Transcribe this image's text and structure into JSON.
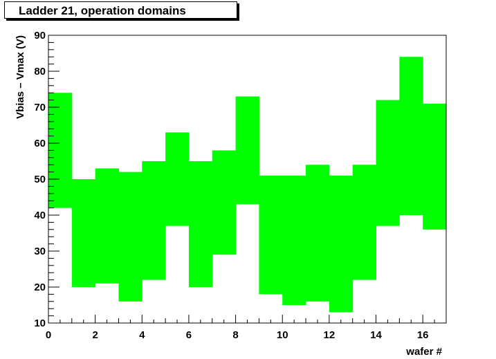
{
  "chart_data": {
    "type": "area",
    "title": "Ladder 21, operation domains",
    "xlabel": "wafer #",
    "ylabel": "Vbias – Vmax (V)",
    "xlim": [
      0,
      17
    ],
    "ylim": [
      10,
      90
    ],
    "x_tick_labels": [
      "0",
      "2",
      "4",
      "6",
      "8",
      "10",
      "12",
      "14",
      "16"
    ],
    "y_tick_labels": [
      "10",
      "20",
      "30",
      "40",
      "50",
      "60",
      "70",
      "80",
      "90"
    ],
    "fill_color": "#00ff00",
    "series": [
      {
        "bins": [
          {
            "x0": 0,
            "x1": 1,
            "low": 42,
            "high": 74
          },
          {
            "x0": 1,
            "x1": 2,
            "low": 20,
            "high": 50
          },
          {
            "x0": 2,
            "x1": 3,
            "low": 21,
            "high": 53
          },
          {
            "x0": 3,
            "x1": 4,
            "low": 16,
            "high": 52
          },
          {
            "x0": 4,
            "x1": 5,
            "low": 22,
            "high": 55
          },
          {
            "x0": 5,
            "x1": 6,
            "low": 37,
            "high": 63
          },
          {
            "x0": 6,
            "x1": 7,
            "low": 20,
            "high": 55
          },
          {
            "x0": 7,
            "x1": 8,
            "low": 29,
            "high": 58
          },
          {
            "x0": 8,
            "x1": 9,
            "low": 43,
            "high": 73
          },
          {
            "x0": 9,
            "x1": 10,
            "low": 18,
            "high": 51
          },
          {
            "x0": 10,
            "x1": 11,
            "low": 15,
            "high": 51
          },
          {
            "x0": 11,
            "x1": 12,
            "low": 16,
            "high": 54
          },
          {
            "x0": 12,
            "x1": 13,
            "low": 13,
            "high": 51
          },
          {
            "x0": 13,
            "x1": 14,
            "low": 22,
            "high": 54
          },
          {
            "x0": 14,
            "x1": 15,
            "low": 37,
            "high": 72
          },
          {
            "x0": 15,
            "x1": 16,
            "low": 40,
            "high": 84
          },
          {
            "x0": 16,
            "x1": 17,
            "low": 36,
            "high": 71
          }
        ]
      }
    ]
  }
}
